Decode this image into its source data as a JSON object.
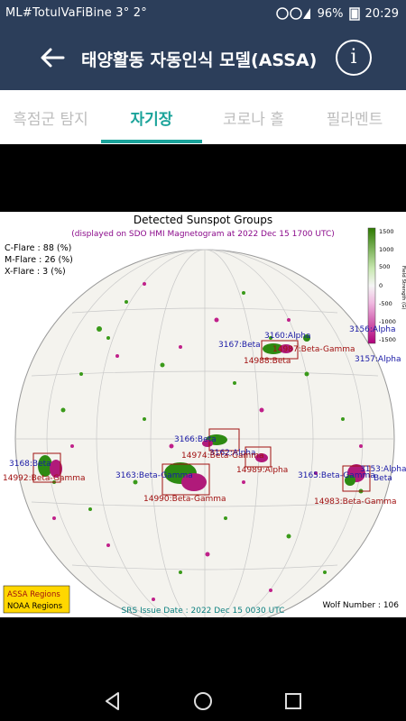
{
  "status_bar": {
    "carrier": "ML#TotulVaFiBine 3° 2°",
    "battery": "96%",
    "time": "20:29"
  },
  "app_bar": {
    "title": "태양활동 자동인식 모델(ASSA)",
    "back_icon": "arrow-left-icon",
    "info_icon": "info-circle-icon"
  },
  "tabs": [
    {
      "label": "흑점군 탐지",
      "active": false
    },
    {
      "label": "자기장",
      "active": true
    },
    {
      "label": "코로나 홀",
      "active": false
    },
    {
      "label": "필라멘트",
      "active": false
    }
  ],
  "figure": {
    "title": "Detected Sunspot Groups",
    "subtitle": "(displayed on SDO HMI Magnetogram at 2022 Dec 15 1700 UTC)",
    "flares": [
      "C-Flare : 88 (%)",
      "M-Flare : 26 (%)",
      "X-Flare :  3 (%)"
    ],
    "colorbar_label": "Field Strength (G)",
    "colorbar_ticks": [
      "1500",
      "1000",
      "500",
      "0",
      "-500",
      "-1000",
      "-1500"
    ],
    "legend": [
      "ASSA Regions",
      "NOAA Regions"
    ],
    "srs": "SRS Issue Date : 2022 Dec 15 0030 UTC",
    "wolf": "Wolf Number : 106",
    "noaa_labels": [
      "3160:Alpha",
      "3156:Alpha",
      "3167:Beta",
      "3157:Alpha",
      "3166:Beta",
      "3162:Alpha",
      "3168:Beta",
      "3163:Beta-Gamma",
      "3165:Beta-Gamma",
      "3153:Alpha",
      "Beta"
    ],
    "assa_labels": [
      "14987:Beta-Gamma",
      "14988:Beta",
      "14974:Beta-Gamma",
      "14989:Alpha",
      "14992:Beta-Gamma",
      "14990:Beta-Gamma",
      "14983:Beta-Gamma"
    ],
    "colors": {
      "noaa": "#1a1aa6",
      "assa": "#a01010",
      "positive": "#3a9a1a",
      "negative": "#c0208a",
      "legend_bg": "#ffd700"
    }
  },
  "nav": [
    "back-triangle-icon",
    "home-circle-icon",
    "recents-square-icon"
  ]
}
